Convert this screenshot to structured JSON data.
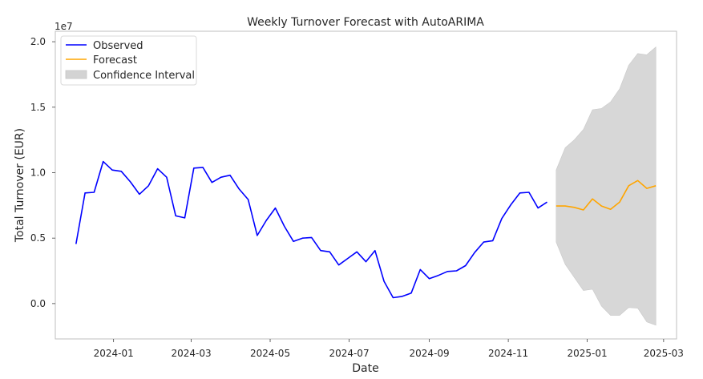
{
  "chart_data": {
    "type": "line",
    "title": "Weekly Turnover Forecast with AutoARIMA",
    "xlabel": "Date",
    "ylabel": "Total Turnover (EUR)",
    "y_offset_label": "1e7",
    "xlim": [
      "2023-11-17",
      "2025-03-11"
    ],
    "ylim": [
      -2700000,
      20800000
    ],
    "grid": false,
    "legend_position": "top-left",
    "x_ticks": [
      {
        "date": "2024-01-01",
        "label": "2024-01"
      },
      {
        "date": "2024-03-01",
        "label": "2024-03"
      },
      {
        "date": "2024-05-01",
        "label": "2024-05"
      },
      {
        "date": "2024-07-01",
        "label": "2024-07"
      },
      {
        "date": "2024-09-01",
        "label": "2024-09"
      },
      {
        "date": "2024-11-01",
        "label": "2024-11"
      },
      {
        "date": "2025-01-01",
        "label": "2025-01"
      },
      {
        "date": "2025-03-01",
        "label": "2025-03"
      }
    ],
    "y_ticks": [
      {
        "value": 0,
        "label": "0.0"
      },
      {
        "value": 5000000,
        "label": "0.5"
      },
      {
        "value": 10000000,
        "label": "1.0"
      },
      {
        "value": 15000000,
        "label": "1.5"
      },
      {
        "value": 20000000,
        "label": "2.0"
      }
    ],
    "series": [
      {
        "name": "Observed",
        "color": "#0000ff",
        "x": [
          "2023-12-03",
          "2023-12-10",
          "2023-12-17",
          "2023-12-24",
          "2023-12-31",
          "2024-01-07",
          "2024-01-14",
          "2024-01-21",
          "2024-01-28",
          "2024-02-04",
          "2024-02-11",
          "2024-02-18",
          "2024-02-25",
          "2024-03-03",
          "2024-03-10",
          "2024-03-17",
          "2024-03-24",
          "2024-03-31",
          "2024-04-07",
          "2024-04-14",
          "2024-04-21",
          "2024-04-28",
          "2024-05-05",
          "2024-05-12",
          "2024-05-19",
          "2024-05-26",
          "2024-06-02",
          "2024-06-09",
          "2024-06-16",
          "2024-06-23",
          "2024-06-30",
          "2024-07-07",
          "2024-07-14",
          "2024-07-21",
          "2024-07-28",
          "2024-08-04",
          "2024-08-11",
          "2024-08-18",
          "2024-08-25",
          "2024-09-01",
          "2024-09-08",
          "2024-09-15",
          "2024-09-22",
          "2024-09-29",
          "2024-10-06",
          "2024-10-13",
          "2024-10-20",
          "2024-10-27",
          "2024-11-03",
          "2024-11-10",
          "2024-11-17",
          "2024-11-24",
          "2024-12-01"
        ],
        "values": [
          4550000,
          8450000,
          8500000,
          10850000,
          10200000,
          10100000,
          9300000,
          8350000,
          9000000,
          10300000,
          9650000,
          6700000,
          6550000,
          10350000,
          10400000,
          9250000,
          9650000,
          9800000,
          8750000,
          7950000,
          5200000,
          6350000,
          7300000,
          5900000,
          4750000,
          5000000,
          5050000,
          4050000,
          3950000,
          2950000,
          3450000,
          3950000,
          3200000,
          4050000,
          1700000,
          450000,
          550000,
          800000,
          2600000,
          1900000,
          2150000,
          2450000,
          2500000,
          2900000,
          3900000,
          4700000,
          4800000,
          6500000,
          7550000,
          8450000,
          8500000,
          7300000,
          7750000
        ]
      },
      {
        "name": "Forecast",
        "color": "#ffa500",
        "x": [
          "2024-12-08",
          "2024-12-15",
          "2024-12-22",
          "2024-12-29",
          "2025-01-05",
          "2025-01-12",
          "2025-01-19",
          "2025-01-26",
          "2025-02-02",
          "2025-02-09",
          "2025-02-16",
          "2025-02-23"
        ],
        "values": [
          7450000,
          7450000,
          7350000,
          7150000,
          8000000,
          7450000,
          7200000,
          7750000,
          9000000,
          9400000,
          8800000,
          9000000
        ]
      }
    ],
    "confidence_interval": {
      "name": "Confidence Interval",
      "color": "#d3d3d3",
      "x": [
        "2024-12-08",
        "2024-12-15",
        "2024-12-22",
        "2024-12-29",
        "2025-01-05",
        "2025-01-12",
        "2025-01-19",
        "2025-01-26",
        "2025-02-02",
        "2025-02-09",
        "2025-02-16",
        "2025-02-23"
      ],
      "lower": [
        4700000,
        3000000,
        2000000,
        1000000,
        1100000,
        -200000,
        -900000,
        -900000,
        -300000,
        -350000,
        -1400000,
        -1650000
      ],
      "upper": [
        10200000,
        11900000,
        12500000,
        13300000,
        14800000,
        14900000,
        15400000,
        16400000,
        18200000,
        19100000,
        19000000,
        19600000
      ]
    }
  }
}
